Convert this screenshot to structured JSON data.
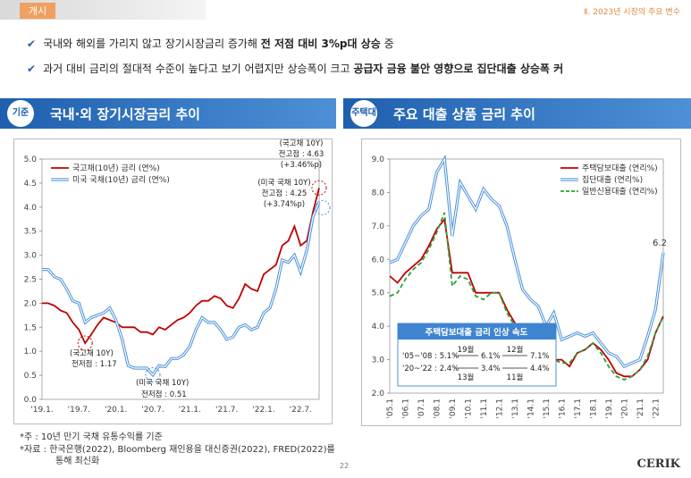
{
  "header": {
    "tag": "개시",
    "crumb": "Ⅱ. 2023년 시장의 주요 변수"
  },
  "bullets": [
    [
      "국내와 해외를 가리지 않고 장기시장금리 증가해 ",
      "전 저점 대비 3%p대 상승",
      " 중"
    ],
    [
      "과거 대비 금리의 절대적 수준이 높다고 보기 어렵지만 상승폭이 크고 ",
      "공급자 금융 불안 영향으로 집단대출 상승폭 커",
      ""
    ]
  ],
  "sections": [
    {
      "badge": "기준",
      "title": "국내·외 장기시장금리 추이"
    },
    {
      "badge": "주택대",
      "title": "주요 대출 상품 금리 추이"
    }
  ],
  "notes": [
    "*주 : 10년 만기 국채 유통수익률 기준",
    "*자료 : 한국은행(2022), Bloomberg 재인용을 대신증권(2022), FRED(2022)를",
    "통해 최신화"
  ],
  "footer": {
    "page": "22",
    "logo": "CERIK"
  },
  "chart_data": [
    {
      "type": "line",
      "legend": "top-left",
      "categories": [
        "'19.1.",
        null,
        null,
        null,
        null,
        null,
        "'19.7.",
        null,
        null,
        null,
        null,
        null,
        "'20.1.",
        null,
        null,
        null,
        null,
        null,
        "'20.7.",
        null,
        null,
        null,
        null,
        null,
        "'21.1.",
        null,
        null,
        null,
        null,
        null,
        "'21.7.",
        null,
        null,
        null,
        null,
        null,
        "'22.1.",
        null,
        null,
        null,
        null,
        null,
        "'22.7.",
        null,
        null,
        null
      ],
      "ylim": [
        0,
        5
      ],
      "yticks": [
        {
          "value": 0,
          "label": "0.0"
        },
        {
          "value": 0.5,
          "label": "0.5"
        },
        {
          "value": 1,
          "label": "1.0"
        },
        {
          "value": 1.5,
          "label": "1.5"
        },
        {
          "value": 2,
          "label": "2.0"
        },
        {
          "value": 2.5,
          "label": "2.5"
        },
        {
          "value": 3,
          "label": "3.0"
        },
        {
          "value": 3.5,
          "label": "3.5"
        },
        {
          "value": 4,
          "label": "4.0"
        },
        {
          "value": 4.5,
          "label": "4.5"
        },
        {
          "value": 5,
          "label": "5.0"
        }
      ],
      "series": [
        {
          "name": "국고채(10년) 금리 (연%)",
          "color": "#c00000",
          "style": "solid",
          "values": [
            2.0,
            2.0,
            1.95,
            1.85,
            1.8,
            1.6,
            1.45,
            1.17,
            1.35,
            1.55,
            1.7,
            1.65,
            1.6,
            1.5,
            1.5,
            1.5,
            1.4,
            1.4,
            1.35,
            1.5,
            1.45,
            1.55,
            1.65,
            1.7,
            1.8,
            1.95,
            2.05,
            2.05,
            2.15,
            2.1,
            1.95,
            1.9,
            2.1,
            2.4,
            2.3,
            2.25,
            2.6,
            2.7,
            2.8,
            3.2,
            3.3,
            3.6,
            3.2,
            3.3,
            3.9,
            4.4
          ]
        },
        {
          "name": "미국 국채(10년) 금리 (연%)",
          "color": "#4a90d9",
          "style": "double",
          "values": [
            2.7,
            2.7,
            2.55,
            2.5,
            2.3,
            2.05,
            2.0,
            1.6,
            1.7,
            1.75,
            1.8,
            1.9,
            1.65,
            1.25,
            0.7,
            0.65,
            0.65,
            0.65,
            0.51,
            0.7,
            0.68,
            0.85,
            0.85,
            0.93,
            1.1,
            1.45,
            1.7,
            1.6,
            1.6,
            1.45,
            1.25,
            1.3,
            1.5,
            1.55,
            1.45,
            1.5,
            1.8,
            1.9,
            2.3,
            2.9,
            2.85,
            3.0,
            2.65,
            3.1,
            3.8,
            4.1
          ]
        }
      ],
      "annotations": [
        "(국고채 10Y)",
        "전고점 : 4.63",
        "(+3.46%p)",
        "(미국 국채 10Y)",
        "전고점 : 4.25",
        "(+3.74%p)",
        "(국고채 10Y)",
        "전저점 : 1.17",
        "(미국 국채 10Y)",
        "전저점 : 0.51"
      ]
    },
    {
      "type": "line",
      "legend": "top-right",
      "categories": [
        "'05.1",
        null,
        "'06.1",
        null,
        "'07.1",
        null,
        "'08.1",
        null,
        "'09.1",
        null,
        "'10.1",
        null,
        "'11.1",
        null,
        "'12.1",
        null,
        "'13.1",
        null,
        "'14.1",
        null,
        "'15.1",
        null,
        "'16.1",
        null,
        "'17.1",
        null,
        "'18.1",
        null,
        "'19.1",
        null,
        "'20.1",
        null,
        "'21.1",
        null,
        "'22.1",
        null
      ],
      "ylim": [
        2,
        9
      ],
      "yticks": [
        {
          "value": 2,
          "label": "2.0"
        },
        {
          "value": 3,
          "label": "3.0"
        },
        {
          "value": 4,
          "label": "4.0"
        },
        {
          "value": 5,
          "label": "5.0"
        },
        {
          "value": 6,
          "label": "6.0"
        },
        {
          "value": 7,
          "label": "7.0"
        },
        {
          "value": 8,
          "label": "8.0"
        },
        {
          "value": 9,
          "label": "9.0"
        }
      ],
      "series": [
        {
          "name": "주택담보대출 (연리%)",
          "color": "#c00000",
          "style": "solid",
          "values": [
            5.5,
            5.3,
            5.6,
            5.8,
            6.0,
            6.4,
            6.9,
            7.2,
            5.6,
            5.6,
            5.6,
            5.0,
            5.0,
            5.0,
            5.0,
            4.5,
            4.1,
            3.8,
            3.9,
            3.5,
            3.3,
            3.0,
            3.0,
            2.8,
            3.2,
            3.3,
            3.5,
            3.3,
            3.0,
            2.6,
            2.5,
            2.5,
            2.7,
            3.0,
            3.8,
            4.3
          ]
        },
        {
          "name": "집단대출 (연리%)",
          "color": "#4a90d9",
          "style": "double",
          "values": [
            5.9,
            6.0,
            6.5,
            7.0,
            7.3,
            7.5,
            8.6,
            9.0,
            6.7,
            8.3,
            7.9,
            7.5,
            8.1,
            7.8,
            7.6,
            7.0,
            6.0,
            5.1,
            4.8,
            4.6,
            4.0,
            4.4,
            3.6,
            3.7,
            3.8,
            3.7,
            3.8,
            3.5,
            3.2,
            3.1,
            2.8,
            2.9,
            3.0,
            3.7,
            4.5,
            6.2
          ],
          "value_labels": {
            "35": "6.2"
          }
        },
        {
          "name": "일반신용대출 (연리%)",
          "color": "#2e9e3a",
          "style": "dashed",
          "values": [
            4.9,
            5.0,
            5.4,
            5.7,
            5.9,
            6.3,
            6.8,
            7.4,
            5.2,
            5.5,
            5.4,
            4.9,
            4.8,
            5.0,
            5.0,
            4.4,
            4.0,
            3.8,
            3.8,
            3.4,
            3.2,
            3.0,
            2.9,
            2.9,
            3.2,
            3.3,
            3.5,
            3.2,
            2.8,
            2.5,
            2.4,
            2.5,
            2.7,
            3.1,
            3.8,
            4.3
          ]
        }
      ],
      "inset": {
        "title": "주택담보대출 금리 인상 속도",
        "rows": [
          {
            "period": "'05~'08 : 5.1%",
            "months1": "19월",
            "rate1": "6.1%",
            "months2": "12월",
            "rate2": "7.1%"
          },
          {
            "period": "'20~'22 : 2.4%",
            "months1": "13월",
            "rate1": "3.4%",
            "months2": "11월",
            "rate2": "4.4%"
          }
        ]
      }
    }
  ]
}
